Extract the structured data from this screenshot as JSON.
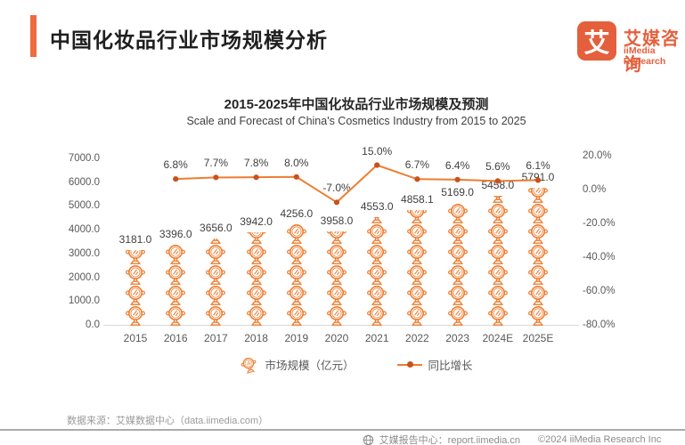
{
  "header": {
    "title": "中国化妆品行业市场规模分析",
    "logo": {
      "symbol": "艾",
      "name": "艾媒咨询",
      "subname": "iiMedia Research"
    }
  },
  "chart": {
    "title": "2015-2025年中国化妆品行业市场规模及预测",
    "subtitle": "Scale and Forecast of China's Cosmetics Industry from 2015 to 2025"
  },
  "chart_data": {
    "type": "combo",
    "categories": [
      "2015",
      "2016",
      "2017",
      "2018",
      "2019",
      "2020",
      "2021",
      "2022",
      "2023",
      "2024E",
      "2025E"
    ],
    "series": [
      {
        "name": "市场规模（亿元）",
        "type": "pictogram-bar",
        "axis": "left",
        "values": [
          3181.0,
          3396.0,
          3656.0,
          3942.0,
          4256.0,
          3958.0,
          4553.0,
          4858.1,
          5169.0,
          5458.0,
          5791.0
        ],
        "labels": [
          "3181.0",
          "3396.0",
          "3656.0",
          "3942.0",
          "4256.0",
          "3958.0",
          "4553.0",
          "4858.1",
          "5169.0",
          "5458.0",
          "5791.0"
        ]
      },
      {
        "name": "同比增长",
        "type": "line",
        "axis": "right",
        "values": [
          null,
          6.8,
          7.7,
          7.8,
          8.0,
          -7.0,
          15.0,
          6.7,
          6.4,
          5.6,
          6.1
        ],
        "labels": [
          "",
          "6.8%",
          "7.7%",
          "7.8%",
          "8.0%",
          "-7.0%",
          "15.0%",
          "6.7%",
          "6.4%",
          "5.6%",
          "6.1%"
        ]
      }
    ],
    "left_axis": {
      "ticks": [
        "7000.0",
        "6000.0",
        "5000.0",
        "4000.0",
        "3000.0",
        "2000.0",
        "1000.0",
        "0.0"
      ],
      "min": 0,
      "max": 7000
    },
    "right_axis": {
      "ticks": [
        "20.0%",
        "0.0%",
        "-20.0%",
        "-40.0%",
        "-60.0%",
        "-80.0%"
      ],
      "min": -80,
      "max": 20
    },
    "legend": [
      {
        "label": "市场规模（亿元）",
        "marker": "mirror-icon"
      },
      {
        "label": "同比增长",
        "marker": "line-dot"
      }
    ],
    "grid": false,
    "legend_position": "bottom"
  },
  "source_note": "数据来源：艾媒数据中心（data.iimedia.com）",
  "footer": {
    "report_center": "艾媒报告中心：report.iimedia.cn",
    "copyright": "©2024  iiMedia Research  Inc"
  },
  "colors": {
    "accent": "#EE6A41",
    "logo": "#E4603C",
    "line": "#ED7D31",
    "marker": "#C9511C",
    "icon": "#ED7D31",
    "axis_text": "#595959",
    "data_label": "#3F3F3F"
  }
}
